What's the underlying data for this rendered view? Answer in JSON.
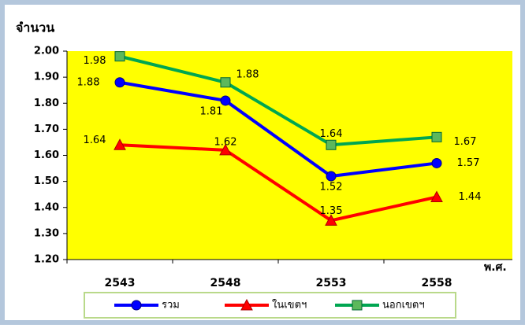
{
  "chart_data": {
    "type": "line",
    "y_label": "จำนวน",
    "x_label": "พ.ศ.",
    "categories": [
      "2543",
      "2548",
      "2553",
      "2558"
    ],
    "series": [
      {
        "name": "รวม",
        "color": "#0000ff",
        "marker": "circle",
        "values": [
          1.88,
          1.81,
          1.52,
          1.57
        ]
      },
      {
        "name": "ในเขตฯ",
        "color": "#ff0000",
        "marker": "triangle",
        "values": [
          1.64,
          1.62,
          1.35,
          1.44
        ]
      },
      {
        "name": "นอกเขตฯ",
        "color": "#00a651",
        "marker": "square",
        "values": [
          1.98,
          1.88,
          1.64,
          1.67
        ]
      }
    ],
    "ylim": [
      1.2,
      2.0
    ],
    "yticks": [
      {
        "value": 1.2,
        "label": "1.20"
      },
      {
        "value": 1.3,
        "label": "1.30"
      },
      {
        "value": 1.4,
        "label": "1.40"
      },
      {
        "value": 1.5,
        "label": "1.50"
      },
      {
        "value": 1.6,
        "label": "1.60"
      },
      {
        "value": 1.7,
        "label": "1.70"
      },
      {
        "value": 1.8,
        "label": "1.80"
      },
      {
        "value": 1.9,
        "label": "1.90"
      },
      {
        "value": 2.0,
        "label": "2.00"
      }
    ],
    "plot_background": "#ffff00"
  }
}
